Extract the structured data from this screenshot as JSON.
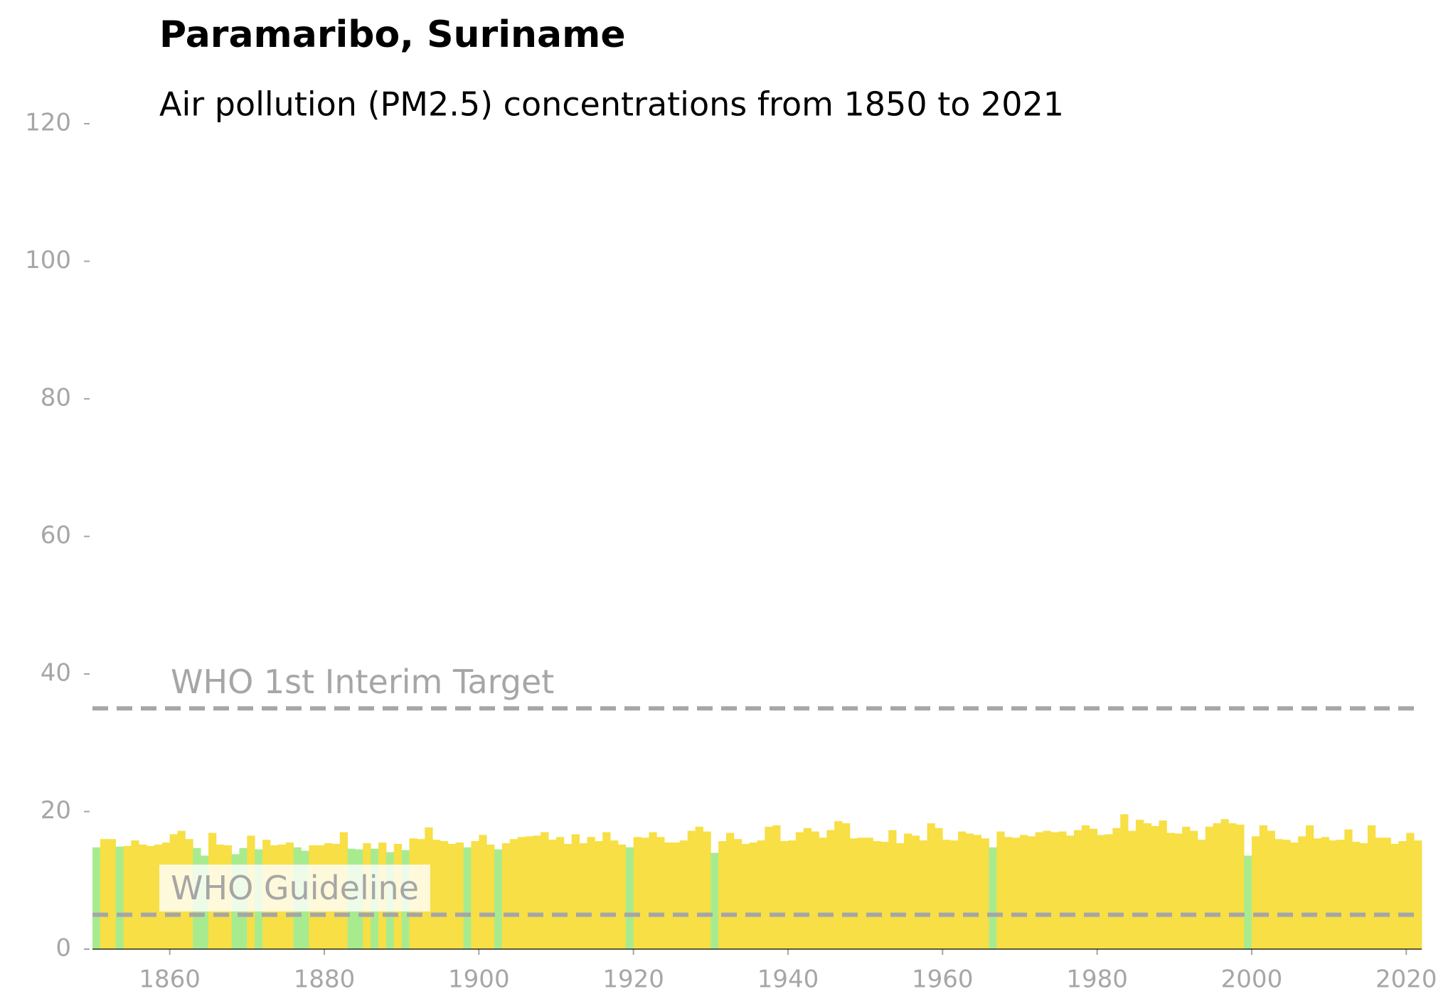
{
  "chart_data": {
    "type": "bar",
    "title": "Paramaribo, Suriname",
    "subtitle": "Air pollution (PM2.5) concentrations from 1850 to 2021",
    "x": [
      1850,
      1851,
      1852,
      1853,
      1854,
      1855,
      1856,
      1857,
      1858,
      1859,
      1860,
      1861,
      1862,
      1863,
      1864,
      1865,
      1866,
      1867,
      1868,
      1869,
      1870,
      1871,
      1872,
      1873,
      1874,
      1875,
      1876,
      1877,
      1878,
      1879,
      1880,
      1881,
      1882,
      1883,
      1884,
      1885,
      1886,
      1887,
      1888,
      1889,
      1890,
      1891,
      1892,
      1893,
      1894,
      1895,
      1896,
      1897,
      1898,
      1899,
      1900,
      1901,
      1902,
      1903,
      1904,
      1905,
      1906,
      1907,
      1908,
      1909,
      1910,
      1911,
      1912,
      1913,
      1914,
      1915,
      1916,
      1917,
      1918,
      1919,
      1920,
      1921,
      1922,
      1923,
      1924,
      1925,
      1926,
      1927,
      1928,
      1929,
      1930,
      1931,
      1932,
      1933,
      1934,
      1935,
      1936,
      1937,
      1938,
      1939,
      1940,
      1941,
      1942,
      1943,
      1944,
      1945,
      1946,
      1947,
      1948,
      1949,
      1950,
      1951,
      1952,
      1953,
      1954,
      1955,
      1956,
      1957,
      1958,
      1959,
      1960,
      1961,
      1962,
      1963,
      1964,
      1965,
      1966,
      1967,
      1968,
      1969,
      1970,
      1971,
      1972,
      1973,
      1974,
      1975,
      1976,
      1977,
      1978,
      1979,
      1980,
      1981,
      1982,
      1983,
      1984,
      1985,
      1986,
      1987,
      1988,
      1989,
      1990,
      1991,
      1992,
      1993,
      1994,
      1995,
      1996,
      1997,
      1998,
      1999,
      2000,
      2001,
      2002,
      2003,
      2004,
      2005,
      2006,
      2007,
      2008,
      2009,
      2010,
      2011,
      2012,
      2013,
      2014,
      2015,
      2016,
      2017,
      2018,
      2019,
      2020,
      2021
    ],
    "values": [
      14.8,
      16.0,
      16.0,
      14.9,
      15.0,
      15.8,
      15.2,
      15.0,
      15.2,
      15.5,
      16.7,
      17.2,
      16.0,
      14.7,
      13.6,
      16.9,
      15.2,
      15.1,
      13.8,
      14.7,
      16.5,
      14.5,
      15.9,
      15.1,
      15.2,
      15.5,
      14.8,
      14.3,
      15.1,
      15.1,
      15.4,
      15.3,
      17.0,
      14.6,
      14.5,
      15.4,
      14.6,
      15.5,
      14.1,
      15.3,
      14.4,
      16.1,
      16.0,
      17.7,
      15.9,
      15.7,
      15.3,
      15.5,
      14.8,
      15.7,
      16.6,
      15.2,
      14.5,
      15.4,
      16.0,
      16.3,
      16.4,
      16.5,
      17.0,
      15.9,
      16.3,
      15.3,
      16.7,
      15.4,
      16.3,
      15.7,
      17.0,
      15.8,
      15.2,
      14.8,
      16.3,
      16.2,
      17.0,
      16.3,
      15.5,
      15.5,
      15.8,
      17.2,
      17.8,
      17.1,
      14.0,
      15.7,
      16.9,
      16.0,
      15.3,
      15.5,
      15.8,
      17.8,
      18.0,
      15.7,
      15.8,
      17.0,
      17.6,
      17.1,
      16.2,
      17.3,
      18.6,
      18.3,
      16.1,
      16.2,
      16.2,
      15.7,
      15.6,
      17.3,
      15.4,
      16.8,
      16.5,
      15.8,
      18.3,
      17.6,
      15.9,
      15.8,
      17.1,
      16.8,
      16.6,
      16.1,
      14.8,
      17.1,
      16.3,
      16.2,
      16.6,
      16.4,
      17.0,
      17.2,
      17.0,
      17.1,
      16.5,
      17.3,
      18.0,
      17.5,
      16.6,
      16.7,
      17.6,
      19.6,
      17.2,
      18.8,
      18.3,
      17.9,
      18.7,
      16.9,
      16.8,
      17.8,
      17.2,
      15.9,
      17.8,
      18.3,
      18.9,
      18.3,
      18.1,
      13.6,
      16.4,
      18.0,
      17.2,
      16.0,
      15.9,
      15.5,
      16.4,
      18.0,
      16.1,
      16.3,
      15.8,
      15.9,
      17.4,
      15.6,
      15.4,
      18.0,
      16.2,
      16.2,
      15.3,
      15.7,
      16.9,
      15.8
    ],
    "colors": [
      "#a8eb8f",
      "#f7df45",
      "#f7df45",
      "#a8eb8f",
      "#f7df45",
      "#f7df45",
      "#f7df45",
      "#f7df45",
      "#f7df45",
      "#f7df45",
      "#f7df45",
      "#f7df45",
      "#f7df45",
      "#a8eb8f",
      "#a8eb8f",
      "#f7df45",
      "#f7df45",
      "#f7df45",
      "#a8eb8f",
      "#a8eb8f",
      "#f7df45",
      "#a8eb8f",
      "#f7df45",
      "#f7df45",
      "#f7df45",
      "#f7df45",
      "#a8eb8f",
      "#a8eb8f",
      "#f7df45",
      "#f7df45",
      "#f7df45",
      "#f7df45",
      "#f7df45",
      "#a8eb8f",
      "#a8eb8f",
      "#f7df45",
      "#a8eb8f",
      "#f7df45",
      "#a8eb8f",
      "#f7df45",
      "#a8eb8f",
      "#f7df45",
      "#f7df45",
      "#f7df45",
      "#f7df45",
      "#f7df45",
      "#f7df45",
      "#f7df45",
      "#a8eb8f",
      "#f7df45",
      "#f7df45",
      "#f7df45",
      "#a8eb8f",
      "#f7df45",
      "#f7df45",
      "#f7df45",
      "#f7df45",
      "#f7df45",
      "#f7df45",
      "#f7df45",
      "#f7df45",
      "#f7df45",
      "#f7df45",
      "#f7df45",
      "#f7df45",
      "#f7df45",
      "#f7df45",
      "#f7df45",
      "#f7df45",
      "#a8eb8f",
      "#f7df45",
      "#f7df45",
      "#f7df45",
      "#f7df45",
      "#f7df45",
      "#f7df45",
      "#f7df45",
      "#f7df45",
      "#f7df45",
      "#f7df45",
      "#a8eb8f",
      "#f7df45",
      "#f7df45",
      "#f7df45",
      "#f7df45",
      "#f7df45",
      "#f7df45",
      "#f7df45",
      "#f7df45",
      "#f7df45",
      "#f7df45",
      "#f7df45",
      "#f7df45",
      "#f7df45",
      "#f7df45",
      "#f7df45",
      "#f7df45",
      "#f7df45",
      "#f7df45",
      "#f7df45",
      "#f7df45",
      "#f7df45",
      "#f7df45",
      "#f7df45",
      "#f7df45",
      "#f7df45",
      "#f7df45",
      "#f7df45",
      "#f7df45",
      "#f7df45",
      "#f7df45",
      "#f7df45",
      "#f7df45",
      "#f7df45",
      "#f7df45",
      "#f7df45",
      "#a8eb8f",
      "#f7df45",
      "#f7df45",
      "#f7df45",
      "#f7df45",
      "#f7df45",
      "#f7df45",
      "#f7df45",
      "#f7df45",
      "#f7df45",
      "#f7df45",
      "#f7df45",
      "#f7df45",
      "#f7df45",
      "#f7df45",
      "#f7df45",
      "#f7df45",
      "#f7df45",
      "#f7df45",
      "#f7df45",
      "#f7df45",
      "#f7df45",
      "#f7df45",
      "#f7df45",
      "#f7df45",
      "#f7df45",
      "#f7df45",
      "#f7df45",
      "#f7df45",
      "#f7df45",
      "#f7df45",
      "#f7df45",
      "#f7df45",
      "#a8eb8f",
      "#f7df45",
      "#f7df45",
      "#f7df45",
      "#f7df45",
      "#f7df45",
      "#f7df45",
      "#f7df45",
      "#f7df45",
      "#f7df45",
      "#f7df45",
      "#f7df45",
      "#f7df45",
      "#f7df45",
      "#f7df45",
      "#f7df45",
      "#f7df45",
      "#f7df45",
      "#f7df45",
      "#f7df45",
      "#f7df45",
      "#f7df45",
      "#f7df45"
    ],
    "xlim": [
      1850,
      2022
    ],
    "xticks": [
      1860,
      1880,
      1900,
      1920,
      1940,
      1960,
      1980,
      2000,
      2020
    ],
    "ylim": [
      0,
      120
    ],
    "yticks": [
      0,
      20,
      40,
      60,
      80,
      100,
      120
    ],
    "reference_lines": [
      {
        "label": "WHO Guideline",
        "value": 5
      },
      {
        "label": "WHO 1st Interim Target",
        "value": 35
      }
    ],
    "reference_color": "#a6a6a6"
  }
}
